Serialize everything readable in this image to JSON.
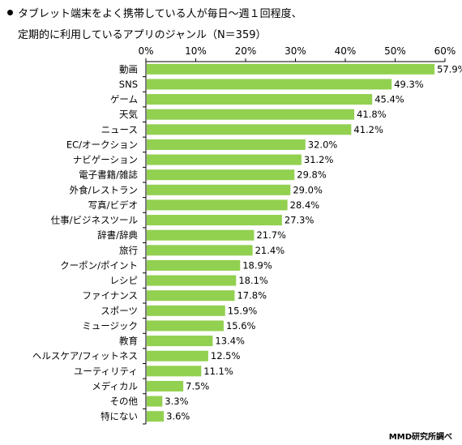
{
  "chart_data": {
    "type": "bar",
    "orientation": "horizontal",
    "title_lines": [
      "タブレット端末をよく携帯している人が毎日～週１回程度、",
      "定期的に利用しているアプリのジャンル（N＝359）"
    ],
    "categories": [
      "動画",
      "SNS",
      "ゲーム",
      "天気",
      "ニュース",
      "EC/オークション",
      "ナビゲーション",
      "電子書籍/雑誌",
      "外食/レストラン",
      "写真/ビデオ",
      "仕事/ビジネスツール",
      "辞書/辞典",
      "旅行",
      "クーポン/ポイント",
      "レシピ",
      "ファイナンス",
      "スポーツ",
      "ミュージック",
      "教育",
      "ヘルスケア/フィットネス",
      "ユーティリティ",
      "メディカル",
      "その他",
      "特にない"
    ],
    "values": [
      57.9,
      49.3,
      45.4,
      41.8,
      41.2,
      32.0,
      31.2,
      29.8,
      29.0,
      28.4,
      27.3,
      21.7,
      21.4,
      18.9,
      18.1,
      17.8,
      15.9,
      15.6,
      13.4,
      12.5,
      11.1,
      7.5,
      3.3,
      3.6
    ],
    "value_labels": [
      "57.9%",
      "49.3%",
      "45.4%",
      "41.8%",
      "41.2%",
      "32.0%",
      "31.2%",
      "29.8%",
      "29.0%",
      "28.4%",
      "27.3%",
      "21.7%",
      "21.4%",
      "18.9%",
      "18.1%",
      "17.8%",
      "15.9%",
      "15.6%",
      "13.4%",
      "12.5%",
      "11.1%",
      "7.5%",
      "3.3%",
      "3.6%"
    ],
    "xlim": [
      0,
      60
    ],
    "x_ticks": [
      "0%",
      "10%",
      "20%",
      "30%",
      "40%",
      "50%",
      "60%"
    ],
    "axis_position": "top",
    "grid": false,
    "bar_color": "#92d050"
  },
  "credit": "MMD研究所調べ"
}
